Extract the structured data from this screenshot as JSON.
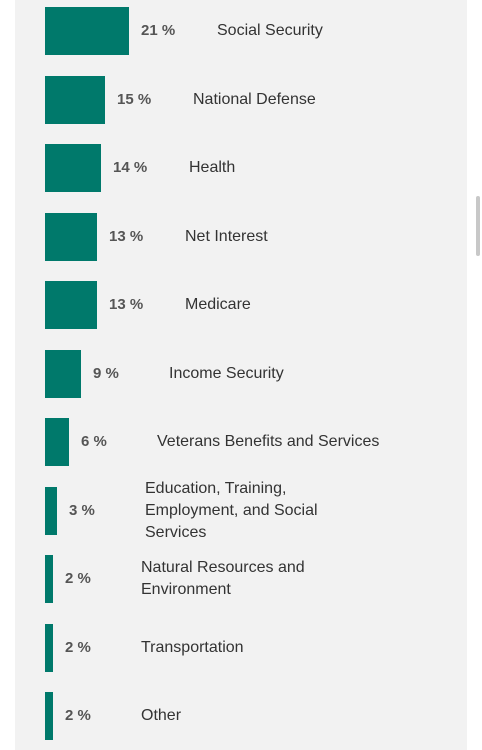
{
  "chart_data": {
    "type": "bar",
    "orientation": "horizontal",
    "value_suffix": " %",
    "bar_color": "#00796b",
    "categories": [
      "Social Security",
      "National Defense",
      "Health",
      "Net Interest",
      "Medicare",
      "Income Security",
      "Veterans Benefits and Services",
      "Education, Training, Employment, and Social Services",
      "Natural Resources and Environment",
      "Transportation",
      "Other"
    ],
    "values": [
      21,
      15,
      14,
      13,
      13,
      9,
      6,
      3,
      2,
      2,
      2
    ]
  }
}
